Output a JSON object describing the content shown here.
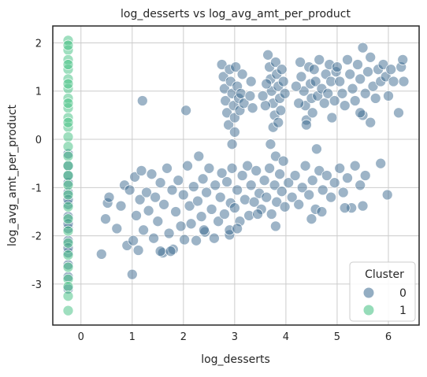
{
  "chart_data": {
    "type": "scatter",
    "title": "log_desserts vs log_avg_amt_per_product",
    "xlabel": "log_desserts",
    "ylabel": "log_avg_amt_per_product",
    "xlim": [
      -0.55,
      6.6
    ],
    "ylim": [
      -3.85,
      2.35
    ],
    "xticks": [
      0,
      1,
      2,
      3,
      4,
      5,
      6
    ],
    "yticks": [
      -3,
      -2,
      -1,
      0,
      1,
      2
    ],
    "grid": true,
    "legend": {
      "title": "Cluster",
      "placement": "bottom-right"
    },
    "series": [
      {
        "name": "0",
        "color": "#3b6a8f",
        "points": [
          [
            -0.25,
            -0.3
          ],
          [
            -0.25,
            -0.55
          ],
          [
            -0.25,
            -0.9
          ],
          [
            -0.25,
            -1.1
          ],
          [
            -0.25,
            -1.35
          ],
          [
            -0.25,
            -1.6
          ],
          [
            -0.25,
            -1.85
          ],
          [
            -0.25,
            -2.1
          ],
          [
            -0.25,
            -2.35
          ],
          [
            -0.25,
            -2.6
          ],
          [
            -0.25,
            -2.85
          ],
          [
            -0.25,
            -3.1
          ],
          [
            -0.25,
            -0.75
          ],
          [
            -0.25,
            -1.25
          ],
          [
            -0.25,
            -1.75
          ],
          [
            -0.25,
            -2.25
          ],
          [
            0.4,
            -2.38
          ],
          [
            0.48,
            -1.65
          ],
          [
            0.52,
            -1.32
          ],
          [
            0.55,
            -1.2
          ],
          [
            0.7,
            -1.85
          ],
          [
            0.78,
            -1.38
          ],
          [
            0.85,
            -0.95
          ],
          [
            0.9,
            -2.2
          ],
          [
            0.95,
            -1.05
          ],
          [
            1.02,
            -2.1
          ],
          [
            1.05,
            -0.78
          ],
          [
            1.08,
            -1.58
          ],
          [
            1.12,
            -2.3
          ],
          [
            1.15,
            -1.25
          ],
          [
            1.18,
            -0.65
          ],
          [
            1.2,
            0.8
          ],
          [
            1.22,
            -1.88
          ],
          [
            1.28,
            -1.1
          ],
          [
            1.32,
            -1.48
          ],
          [
            1.38,
            -0.72
          ],
          [
            1.42,
            -2.05
          ],
          [
            1.45,
            -1.2
          ],
          [
            1.5,
            -1.7
          ],
          [
            1.55,
            -0.9
          ],
          [
            1.6,
            -2.35
          ],
          [
            1.62,
            -1.35
          ],
          [
            1.68,
            -0.6
          ],
          [
            1.72,
            -1.95
          ],
          [
            1.78,
            -1.05
          ],
          [
            1.8,
            -2.28
          ],
          [
            1.85,
            -1.5
          ],
          [
            1.9,
            -0.85
          ],
          [
            1.95,
            -1.8
          ],
          [
            2.0,
            -1.15
          ],
          [
            2.02,
            -2.08
          ],
          [
            2.05,
            0.6
          ],
          [
            2.08,
            -0.55
          ],
          [
            2.12,
            -1.38
          ],
          [
            2.15,
            -1.75
          ],
          [
            2.2,
            -0.98
          ],
          [
            2.25,
            -2.1
          ],
          [
            2.28,
            -1.28
          ],
          [
            2.3,
            -0.35
          ],
          [
            2.35,
            -1.6
          ],
          [
            2.38,
            -0.82
          ],
          [
            2.42,
            -1.92
          ],
          [
            2.45,
            -1.1
          ],
          [
            2.5,
            -0.6
          ],
          [
            2.55,
            -1.45
          ],
          [
            2.6,
            -2.05
          ],
          [
            2.62,
            -0.95
          ],
          [
            2.68,
            -1.7
          ],
          [
            2.72,
            -1.2
          ],
          [
            2.75,
            -0.7
          ],
          [
            2.8,
            -1.55
          ],
          [
            2.85,
            -0.88
          ],
          [
            2.9,
            -1.98
          ],
          [
            2.92,
            -1.32
          ],
          [
            2.95,
            -0.6
          ],
          [
            3.0,
            -1.42
          ],
          [
            3.05,
            -1.05
          ],
          [
            3.1,
            -1.7
          ],
          [
            3.15,
            -0.75
          ],
          [
            3.2,
            -1.25
          ],
          [
            3.25,
            -0.55
          ],
          [
            3.28,
            -1.58
          ],
          [
            3.32,
            -0.95
          ],
          [
            3.38,
            -1.3
          ],
          [
            3.42,
            -0.65
          ],
          [
            3.48,
            -1.12
          ],
          [
            3.52,
            -1.45
          ],
          [
            3.58,
            -0.85
          ],
          [
            3.62,
            -1.2
          ],
          [
            3.68,
            -0.6
          ],
          [
            3.72,
            -1.55
          ],
          [
            3.78,
            -0.95
          ],
          [
            3.82,
            -1.3
          ],
          [
            3.88,
            -0.72
          ],
          [
            3.92,
            -1.08
          ],
          [
            3.98,
            -1.4
          ],
          [
            4.05,
            -0.9
          ],
          [
            4.12,
            -1.2
          ],
          [
            4.18,
            -0.75
          ],
          [
            4.25,
            -1.35
          ],
          [
            4.32,
            -1.0
          ],
          [
            4.38,
            -0.55
          ],
          [
            4.45,
            -1.15
          ],
          [
            4.52,
            -0.85
          ],
          [
            4.58,
            -1.45
          ],
          [
            4.65,
            -0.65
          ],
          [
            4.72,
            -1.05
          ],
          [
            4.8,
            -0.75
          ],
          [
            4.88,
            -1.2
          ],
          [
            4.95,
            -0.9
          ],
          [
            5.05,
            -0.6
          ],
          [
            5.12,
            -1.1
          ],
          [
            5.2,
            -0.8
          ],
          [
            5.28,
            -1.42
          ],
          [
            5.35,
            -0.55
          ],
          [
            5.45,
            -0.95
          ],
          [
            5.55,
            -0.75
          ],
          [
            5.85,
            -0.5
          ],
          [
            5.98,
            -1.15
          ],
          [
            1.0,
            -2.8
          ],
          [
            1.55,
            -2.32
          ],
          [
            1.75,
            -2.32
          ],
          [
            2.4,
            -1.88
          ],
          [
            2.9,
            -1.88
          ],
          [
            3.05,
            -1.85
          ],
          [
            3.45,
            -1.55
          ],
          [
            3.8,
            -1.8
          ],
          [
            4.5,
            -1.65
          ],
          [
            4.7,
            -1.5
          ],
          [
            5.5,
            -1.38
          ],
          [
            5.15,
            -1.42
          ],
          [
            2.75,
            1.55
          ],
          [
            2.78,
            1.3
          ],
          [
            2.8,
            1.05
          ],
          [
            2.82,
            0.8
          ],
          [
            2.85,
            0.55
          ],
          [
            2.88,
            0.3
          ],
          [
            2.9,
            1.45
          ],
          [
            2.92,
            1.2
          ],
          [
            2.95,
            0.95
          ],
          [
            2.98,
            0.7
          ],
          [
            3.0,
            0.45
          ],
          [
            3.02,
            1.5
          ],
          [
            3.05,
            1.1
          ],
          [
            3.08,
            0.85
          ],
          [
            3.1,
            0.6
          ],
          [
            3.12,
            0.95
          ],
          [
            3.15,
            1.35
          ],
          [
            3.18,
            0.75
          ],
          [
            3.0,
            0.15
          ],
          [
            2.95,
            -0.1
          ],
          [
            3.3,
            0.9
          ],
          [
            3.32,
            1.2
          ],
          [
            3.35,
            0.65
          ],
          [
            3.65,
            1.75
          ],
          [
            3.68,
            1.5
          ],
          [
            3.7,
            1.25
          ],
          [
            3.72,
            1.0
          ],
          [
            3.75,
            0.75
          ],
          [
            3.78,
            0.5
          ],
          [
            3.8,
            1.6
          ],
          [
            3.82,
            1.35
          ],
          [
            3.85,
            1.1
          ],
          [
            3.88,
            0.85
          ],
          [
            3.9,
            0.6
          ],
          [
            3.92,
            1.45
          ],
          [
            3.95,
            1.2
          ],
          [
            3.98,
            0.95
          ],
          [
            3.75,
            0.25
          ],
          [
            3.85,
            0.35
          ],
          [
            3.6,
            0.7
          ],
          [
            3.62,
            1.15
          ],
          [
            3.55,
            0.9
          ],
          [
            3.7,
            -0.1
          ],
          [
            3.8,
            -0.35
          ],
          [
            3.95,
            -0.45
          ],
          [
            4.28,
            1.6
          ],
          [
            4.3,
            1.3
          ],
          [
            4.35,
            1.0
          ],
          [
            4.38,
            0.7
          ],
          [
            4.4,
            0.4
          ],
          [
            4.45,
            1.5
          ],
          [
            4.48,
            1.15
          ],
          [
            4.5,
            0.85
          ],
          [
            4.52,
            0.55
          ],
          [
            4.55,
            1.45
          ],
          [
            4.58,
            1.2
          ],
          [
            4.62,
            0.9
          ],
          [
            4.65,
            1.65
          ],
          [
            4.7,
            1.05
          ],
          [
            4.75,
            0.75
          ],
          [
            4.78,
            1.35
          ],
          [
            4.82,
            0.95
          ],
          [
            4.85,
            1.55
          ],
          [
            4.88,
            1.2
          ],
          [
            4.9,
            0.45
          ],
          [
            4.95,
            0.8
          ],
          [
            4.98,
            1.4
          ],
          [
            4.4,
            0.3
          ],
          [
            4.2,
            1.1
          ],
          [
            4.25,
            0.75
          ],
          [
            4.6,
            -0.2
          ],
          [
            5.0,
            1.5
          ],
          [
            5.05,
            1.2
          ],
          [
            5.1,
            0.95
          ],
          [
            5.15,
            0.7
          ],
          [
            5.2,
            1.65
          ],
          [
            5.25,
            1.35
          ],
          [
            5.3,
            1.05
          ],
          [
            5.35,
            0.8
          ],
          [
            5.4,
            1.55
          ],
          [
            5.45,
            1.25
          ],
          [
            5.5,
            1.9
          ],
          [
            5.55,
            0.95
          ],
          [
            5.6,
            1.4
          ],
          [
            5.65,
            1.7
          ],
          [
            5.7,
            1.1
          ],
          [
            5.75,
            0.85
          ],
          [
            5.8,
            1.45
          ],
          [
            5.85,
            1.2
          ],
          [
            5.9,
            1.55
          ],
          [
            5.95,
            1.3
          ],
          [
            6.0,
            0.9
          ],
          [
            6.05,
            1.45
          ],
          [
            6.1,
            1.2
          ],
          [
            6.2,
            0.55
          ],
          [
            6.25,
            1.5
          ],
          [
            6.28,
            1.65
          ],
          [
            6.3,
            1.2
          ],
          [
            5.5,
            0.5
          ],
          [
            5.65,
            0.35
          ],
          [
            5.45,
            0.55
          ]
        ]
      },
      {
        "name": "1",
        "color": "#3fbf7f",
        "points": [
          [
            -0.25,
            2.05
          ],
          [
            -0.25,
            1.85
          ],
          [
            -0.25,
            1.65
          ],
          [
            -0.25,
            1.45
          ],
          [
            -0.25,
            1.25
          ],
          [
            -0.25,
            1.05
          ],
          [
            -0.25,
            0.85
          ],
          [
            -0.25,
            0.65
          ],
          [
            -0.25,
            0.45
          ],
          [
            -0.25,
            0.25
          ],
          [
            -0.25,
            0.05
          ],
          [
            -0.25,
            -0.15
          ],
          [
            -0.25,
            -0.35
          ],
          [
            -0.25,
            -0.55
          ],
          [
            -0.25,
            -0.75
          ],
          [
            -0.25,
            -0.95
          ],
          [
            -0.25,
            -1.15
          ],
          [
            -0.25,
            -1.4
          ],
          [
            -0.25,
            -1.65
          ],
          [
            -0.25,
            -1.9
          ],
          [
            -0.25,
            -2.15
          ],
          [
            -0.25,
            -2.4
          ],
          [
            -0.25,
            -2.65
          ],
          [
            -0.25,
            -2.9
          ],
          [
            -0.25,
            -3.05
          ],
          [
            -0.25,
            -3.25
          ],
          [
            -0.25,
            -3.55
          ],
          [
            -0.25,
            1.95
          ],
          [
            -0.25,
            1.55
          ],
          [
            -0.25,
            1.15
          ],
          [
            -0.25,
            0.75
          ],
          [
            -0.25,
            0.35
          ]
        ]
      }
    ]
  }
}
